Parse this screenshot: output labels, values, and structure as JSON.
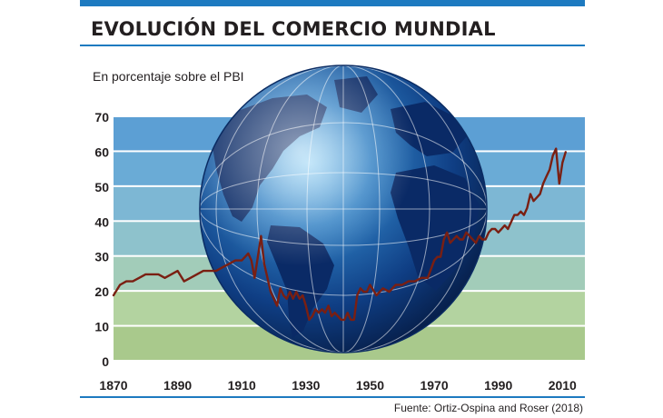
{
  "header": {
    "title": "EVOLUCIÓN DEL COMERCIO MUNDIAL",
    "subtitle": "En porcentaje sobre el PBI",
    "accent_color": "#1d7ac0"
  },
  "footer": {
    "source": "Fuente: Ortiz-Ospina and Roser (2018)"
  },
  "chart_data": {
    "type": "line",
    "title": "EVOLUCIÓN DEL COMERCIO MUNDIAL",
    "subtitle": "En porcentaje sobre el PBI",
    "xlabel": "",
    "ylabel": "",
    "xlim": [
      1870,
      2017
    ],
    "ylim": [
      0,
      70
    ],
    "xticks": [
      "1870",
      "1890",
      "1910",
      "1930",
      "1950",
      "1970",
      "1990",
      "2010"
    ],
    "yticks": [
      "70",
      "60",
      "50",
      "40",
      "30",
      "20",
      "10",
      "0"
    ],
    "band_colors": [
      "#a9c98c",
      "#b3d3a0",
      "#a2ccb9",
      "#8ec2cc",
      "#7db7d4",
      "#6aabd6",
      "#5c9fd4"
    ],
    "line_color": "#7a1f12",
    "globe_icon": "globe-icon",
    "grid": true,
    "legend": "none",
    "series": [
      {
        "x": [
          1870,
          1872,
          1874,
          1876,
          1878,
          1880,
          1882,
          1884,
          1886,
          1888,
          1890,
          1892,
          1894,
          1896,
          1898,
          1900,
          1902,
          1904,
          1906,
          1908,
          1910,
          1911,
          1912,
          1913,
          1914,
          1915,
          1916,
          1917,
          1918,
          1919,
          1920,
          1921,
          1922,
          1923,
          1924,
          1925,
          1926,
          1927,
          1928,
          1929,
          1930,
          1931,
          1932,
          1933,
          1934,
          1935,
          1936,
          1937,
          1938,
          1939,
          1940,
          1941,
          1942,
          1943,
          1944,
          1945,
          1946,
          1947,
          1948,
          1949,
          1950,
          1952,
          1954,
          1956,
          1958,
          1960,
          1962,
          1964,
          1966,
          1968,
          1970,
          1971,
          1972,
          1973,
          1974,
          1975,
          1976,
          1977,
          1978,
          1979,
          1980,
          1981,
          1982,
          1983,
          1984,
          1985,
          1986,
          1987,
          1988,
          1989,
          1990,
          1991,
          1992,
          1993,
          1994,
          1995,
          1996,
          1997,
          1998,
          1999,
          2000,
          2001,
          2002,
          2003,
          2004,
          2005,
          2006,
          2007,
          2008,
          2009,
          2010,
          2011
        ],
        "values": [
          19,
          22,
          23,
          23,
          24,
          25,
          25,
          25,
          24,
          25,
          26,
          23,
          24,
          25,
          26,
          26,
          26,
          27,
          28,
          29,
          29,
          30,
          31,
          29,
          24,
          30,
          36,
          28,
          24,
          20,
          18,
          16,
          21,
          19,
          18,
          20,
          18,
          20,
          18,
          19,
          16,
          12,
          13,
          15,
          14,
          15,
          14,
          16,
          13,
          14,
          13,
          12,
          12,
          14,
          12,
          12,
          19,
          21,
          20,
          20,
          22,
          19,
          21,
          20,
          22,
          22,
          23,
          23,
          24,
          24,
          29,
          30,
          30,
          35,
          37,
          34,
          35,
          36,
          35,
          35,
          37,
          36,
          35,
          34,
          36,
          35,
          35,
          37,
          38,
          38,
          37,
          38,
          39,
          38,
          40,
          42,
          42,
          43,
          42,
          44,
          48,
          46,
          47,
          48,
          51,
          53,
          55,
          59,
          61,
          51,
          57,
          60
        ]
      }
    ]
  }
}
